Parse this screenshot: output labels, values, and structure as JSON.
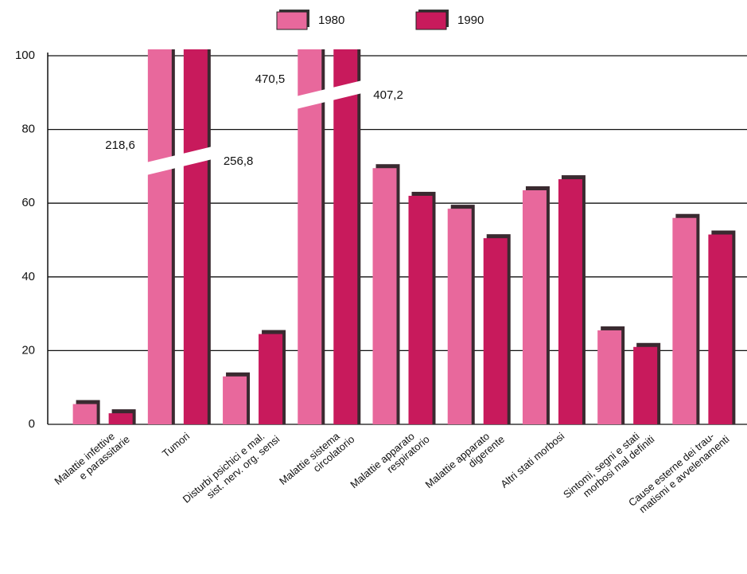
{
  "chart_data": {
    "type": "bar",
    "categories": [
      "Malattie infettive\ne parassitarie",
      "Tumori",
      "Disturbi psichici e mal.\nsist. nerv. org. sensi",
      "Malattie sistema\ncircolatorio",
      "Malattie apparato\nrespiratorio",
      "Malattie apparato\ndigerente",
      "Altri stati morbosi",
      "Sintomi, segni e stati\nmorbosi mal definiti",
      "Cause esterne dei trau-\nmatismi e avvelenamenti"
    ],
    "series": [
      {
        "name": "1980",
        "color": "#e8689c",
        "values": [
          5.5,
          218.6,
          13,
          470.5,
          69.5,
          58.5,
          63.5,
          25.5,
          56
        ],
        "value_labels": [
          null,
          "218,6",
          null,
          "470,5",
          null,
          null,
          null,
          null,
          null
        ]
      },
      {
        "name": "1990",
        "color": "#c81a5c",
        "values": [
          3,
          256.8,
          24.5,
          407.2,
          62,
          50.5,
          66.5,
          21,
          51.5
        ],
        "value_labels": [
          null,
          "256,8",
          null,
          "407,2",
          null,
          null,
          null,
          null,
          null
        ]
      }
    ],
    "ylim": [
      0,
      100
    ],
    "yticks": [
      0,
      20,
      40,
      60,
      80,
      100
    ],
    "grid": true,
    "legend": "top"
  }
}
